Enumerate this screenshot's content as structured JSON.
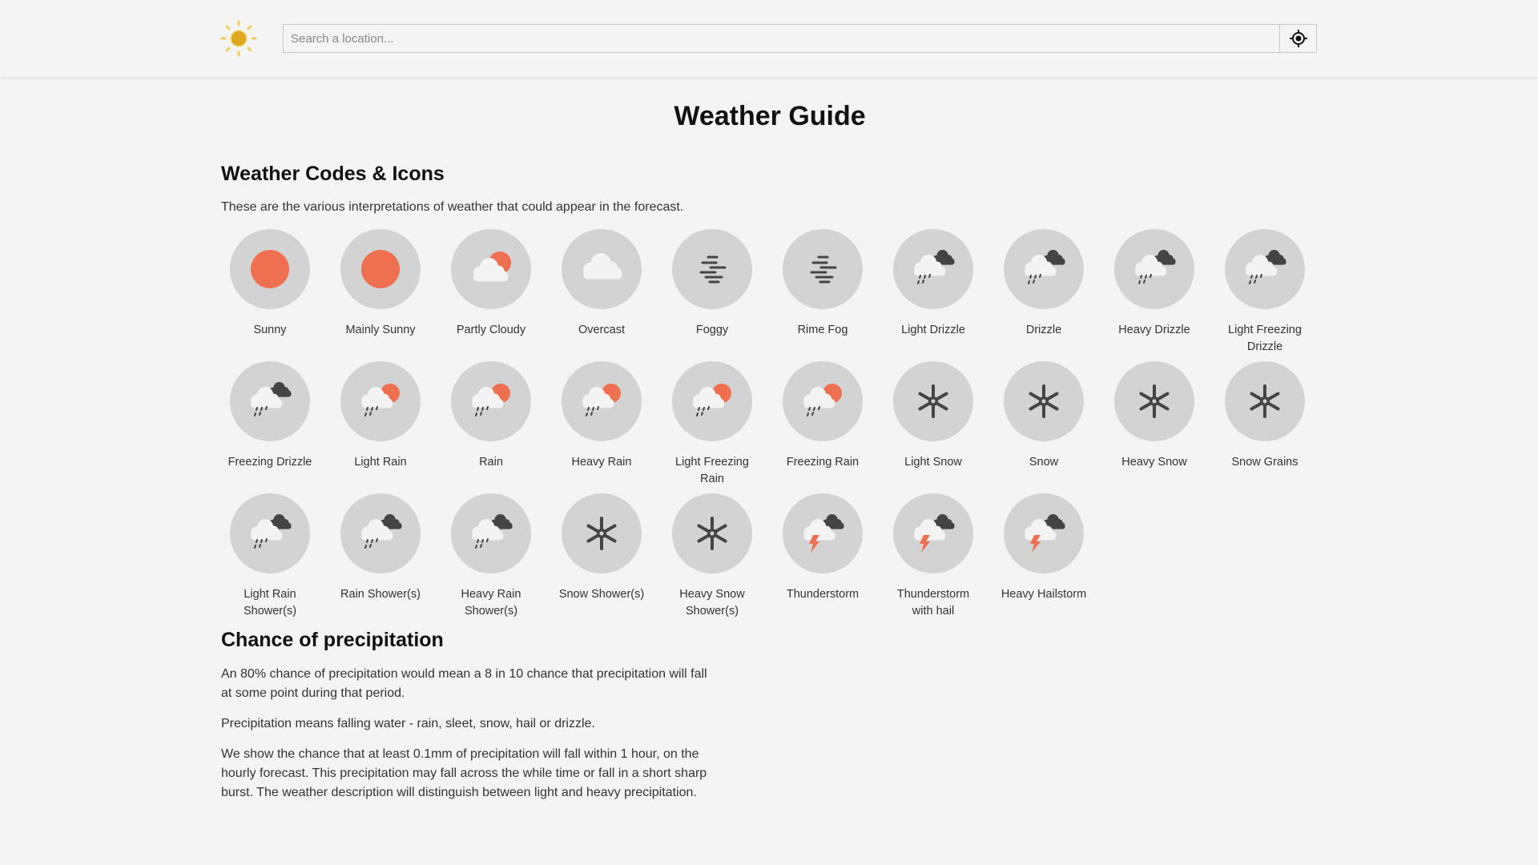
{
  "header": {
    "logo": "sun-logo",
    "search_placeholder": "Search a location...",
    "search_value": "",
    "locate_icon": "crosshair-icon"
  },
  "title": "Weather Guide",
  "codes": {
    "heading": "Weather Codes & Icons",
    "intro": "These are the various interpretations of weather that could appear in the forecast.",
    "items": [
      {
        "label": "Sunny",
        "icon": "sun"
      },
      {
        "label": "Mainly Sunny",
        "icon": "sun"
      },
      {
        "label": "Partly Cloudy",
        "icon": "partly"
      },
      {
        "label": "Overcast",
        "icon": "overcast"
      },
      {
        "label": "Foggy",
        "icon": "fog"
      },
      {
        "label": "Rime Fog",
        "icon": "fog"
      },
      {
        "label": "Light Drizzle",
        "icon": "drizzle"
      },
      {
        "label": "Drizzle",
        "icon": "drizzle"
      },
      {
        "label": "Heavy Drizzle",
        "icon": "drizzle"
      },
      {
        "label": "Light Freezing Drizzle",
        "icon": "drizzle"
      },
      {
        "label": "Freezing Drizzle",
        "icon": "drizzle"
      },
      {
        "label": "Light Rain",
        "icon": "rain"
      },
      {
        "label": "Rain",
        "icon": "rain"
      },
      {
        "label": "Heavy Rain",
        "icon": "rain"
      },
      {
        "label": "Light Freezing Rain",
        "icon": "rain"
      },
      {
        "label": "Freezing Rain",
        "icon": "rain"
      },
      {
        "label": "Light Snow",
        "icon": "snow"
      },
      {
        "label": "Snow",
        "icon": "snow"
      },
      {
        "label": "Heavy Snow",
        "icon": "snow"
      },
      {
        "label": "Snow Grains",
        "icon": "snow"
      },
      {
        "label": "Light Rain Shower(s)",
        "icon": "drizzle"
      },
      {
        "label": "Rain Shower(s)",
        "icon": "drizzle"
      },
      {
        "label": "Heavy Rain Shower(s)",
        "icon": "drizzle"
      },
      {
        "label": "Snow Shower(s)",
        "icon": "snow"
      },
      {
        "label": "Heavy Snow Shower(s)",
        "icon": "snow"
      },
      {
        "label": "Thunderstorm",
        "icon": "thunder"
      },
      {
        "label": "Thunderstorm with hail",
        "icon": "thunder"
      },
      {
        "label": "Heavy Hailstorm",
        "icon": "thunder"
      }
    ]
  },
  "precip": {
    "heading": "Chance of precipitation",
    "paragraphs": [
      "An 80% chance of precipitation would mean a 8 in 10 chance that precipitation will fall at some point during that period.",
      "Precipitation means falling water - rain, sleet, snow, hail or drizzle.",
      "We show the chance that at least 0.1mm of precipitation will fall within 1 hour, on the hourly forecast. This precipitation may fall across the while time or fall in a short sharp burst. The weather description will distinguish between light and heavy precipitation."
    ]
  },
  "colors": {
    "sun": "#ee7050",
    "cloud": "#f3f3f3",
    "dark_cloud": "#444444",
    "circle": "#d3d3d3",
    "logo": "#e0a820"
  }
}
